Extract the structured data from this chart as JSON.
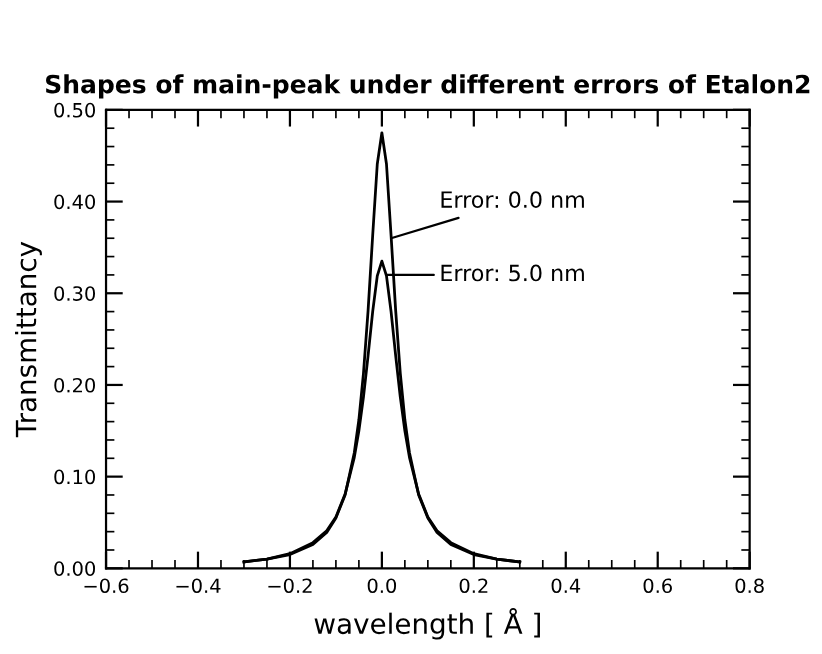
{
  "chart_data": {
    "type": "line",
    "title": "Shapes of main-peak under different errors of Etalon2",
    "xlabel": "wavelength [ Å ]",
    "ylabel": "Transmittancy",
    "x": [
      -0.3,
      -0.25,
      -0.2,
      -0.15,
      -0.12,
      -0.1,
      -0.08,
      -0.06,
      -0.05,
      -0.04,
      -0.03,
      -0.02,
      -0.01,
      0,
      0.01,
      0.02,
      0.03,
      0.04,
      0.05,
      0.06,
      0.08,
      0.1,
      0.12,
      0.15,
      0.2,
      0.25,
      0.3
    ],
    "series": [
      {
        "color": "#000000",
        "values": [
          0.007,
          0.01,
          0.015,
          0.026,
          0.039,
          0.055,
          0.08,
          0.126,
          0.162,
          0.213,
          0.281,
          0.363,
          0.441,
          0.475,
          0.441,
          0.363,
          0.281,
          0.213,
          0.162,
          0.126,
          0.08,
          0.055,
          0.039,
          0.026,
          0.015,
          0.01,
          0.007
        ]
      },
      {
        "color": "#000000",
        "values": [
          0.007,
          0.01,
          0.016,
          0.028,
          0.041,
          0.056,
          0.081,
          0.121,
          0.15,
          0.187,
          0.232,
          0.28,
          0.319,
          0.335,
          0.319,
          0.28,
          0.232,
          0.187,
          0.15,
          0.121,
          0.081,
          0.056,
          0.041,
          0.028,
          0.016,
          0.01,
          0.007
        ]
      }
    ],
    "annotations": [
      {
        "text": "Error: 0.0 nm",
        "x": 0.02,
        "y": 0.36
      },
      {
        "text": "Error: 5.0 nm",
        "x": 0.01,
        "y": 0.32
      }
    ],
    "xlim": [
      -0.6,
      0.8
    ],
    "xticks": [
      {
        "value": -0.6,
        "label": "−0.6"
      },
      {
        "value": -0.4,
        "label": "−0.4"
      },
      {
        "value": -0.2,
        "label": "−0.2"
      },
      {
        "value": 0,
        "label": "0.0"
      },
      0.2,
      0.4,
      0.6,
      0.8
    ],
    "ylim": [
      0,
      0.5
    ],
    "yticks": [
      {
        "value": 0,
        "label": "0.00"
      },
      {
        "value": 0.1,
        "label": "0.10"
      },
      {
        "value": 0.2,
        "label": "0.20"
      },
      {
        "value": 0.3,
        "label": "0.30"
      },
      {
        "value": 0.4,
        "label": "0.40"
      },
      {
        "value": 0.5,
        "label": "0.50"
      }
    ],
    "grid": false,
    "legend": false,
    "marker": "none",
    "line_style": "solid"
  }
}
